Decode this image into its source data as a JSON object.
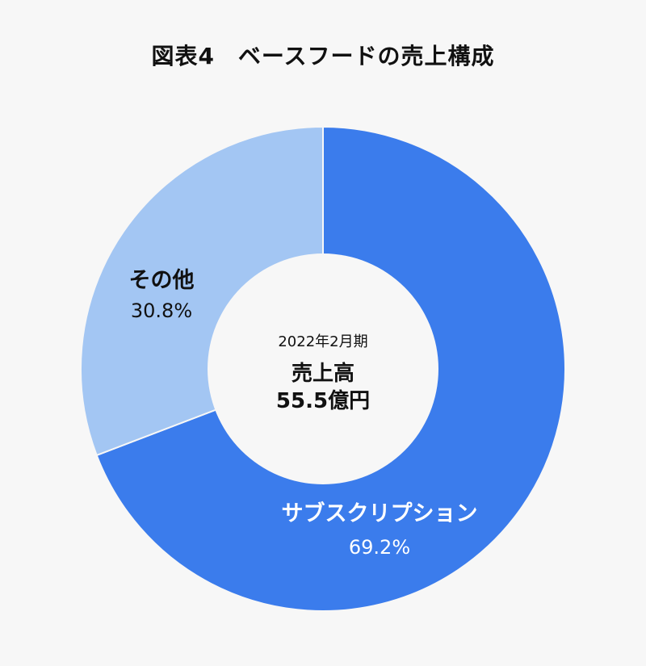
{
  "title": "図表4　ベースフードの売上構成",
  "chart_data": {
    "type": "pie",
    "title": "図表4　ベースフードの売上構成",
    "center": {
      "period": "2022年2月期",
      "label": "売上高",
      "total": "55.5億円"
    },
    "slices": [
      {
        "label": "サブスクリプション",
        "value": 69.2,
        "value_text": "69.2%",
        "color": "#3b7cec"
      },
      {
        "label": "その他",
        "value": 30.8,
        "value_text": "30.8%",
        "color": "#a3c6f3"
      }
    ]
  }
}
